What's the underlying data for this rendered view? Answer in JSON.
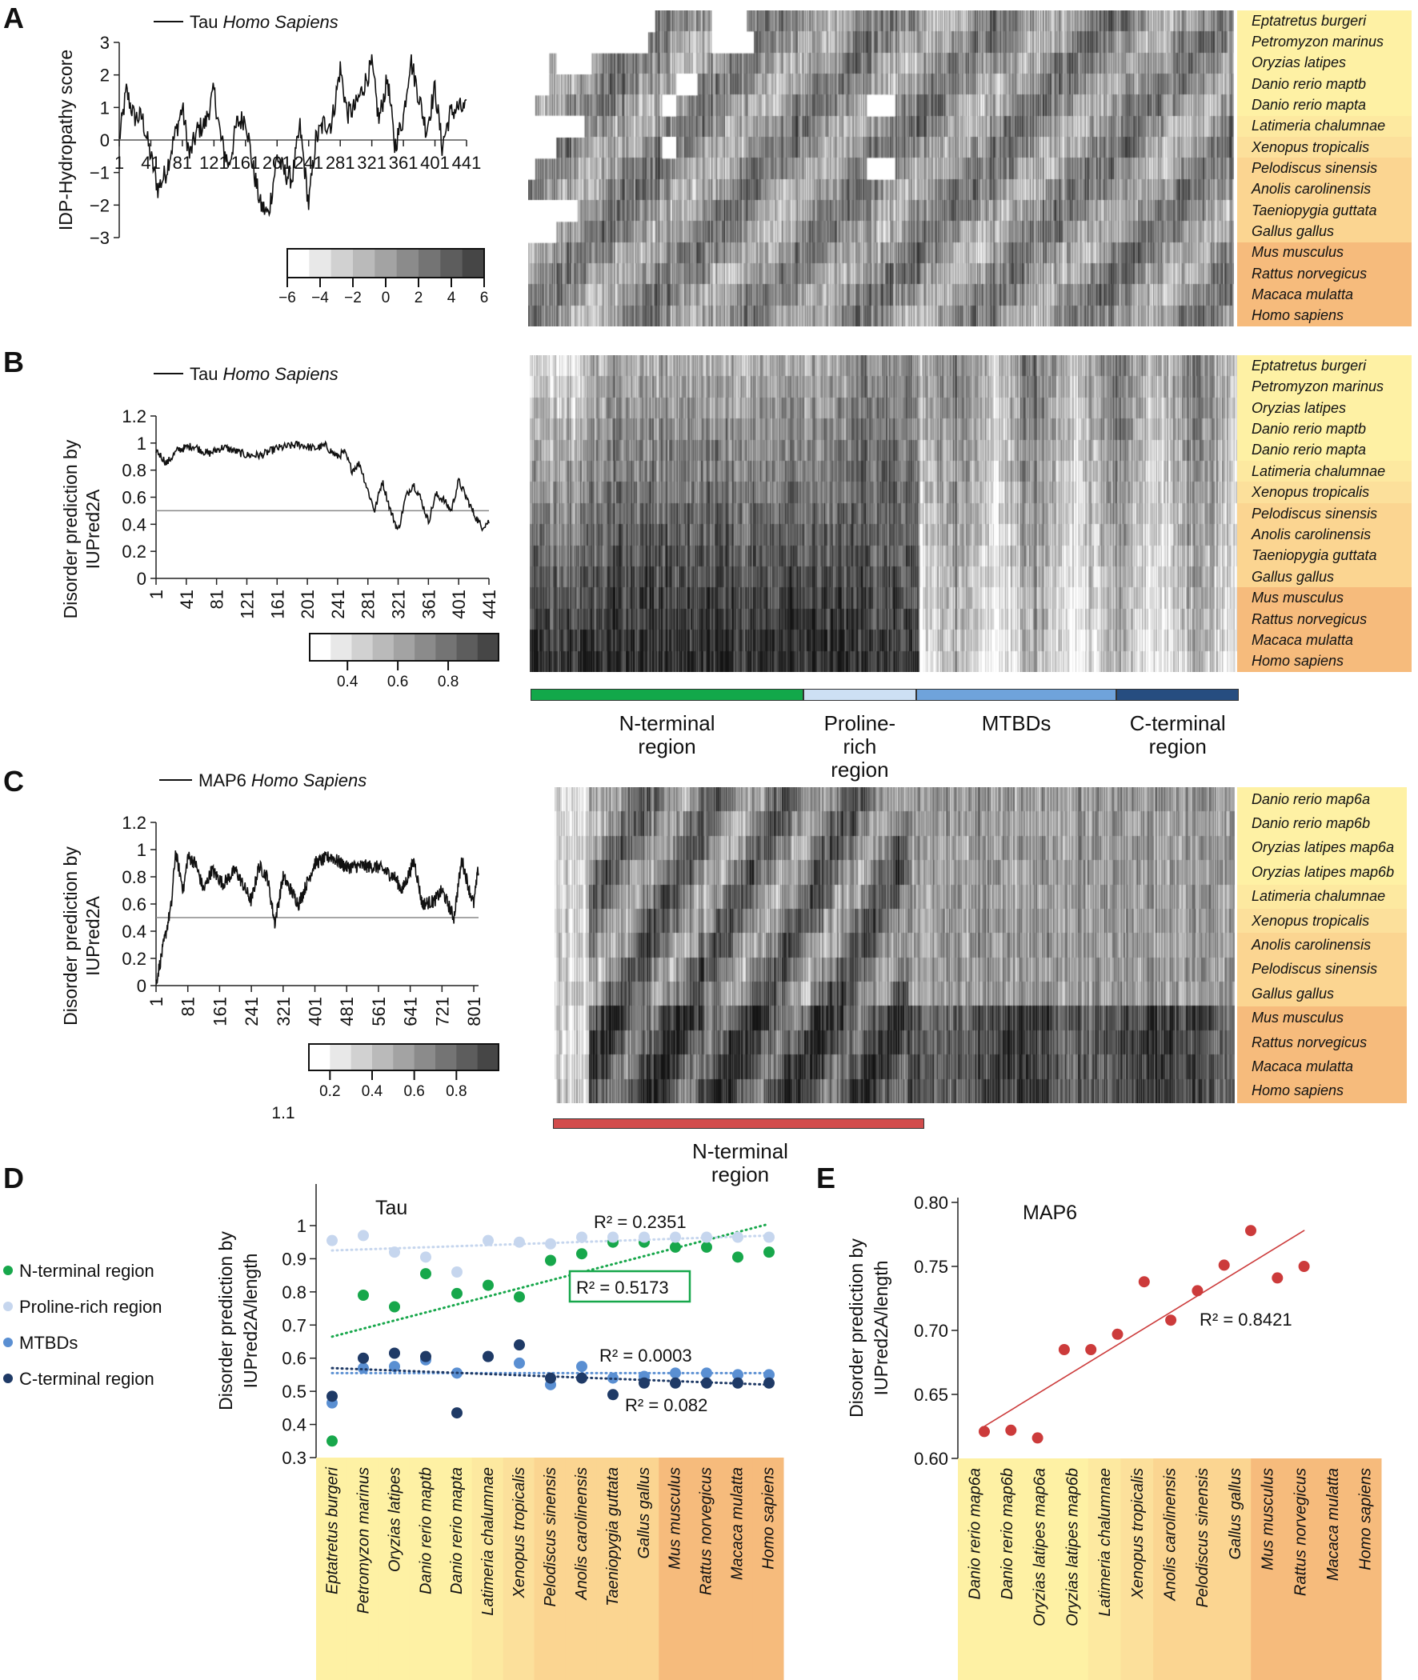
{
  "panel_labels": {
    "a": "A",
    "b": "B",
    "c": "C",
    "d": "D",
    "e": "E"
  },
  "tau_species": [
    "Eptatretus burgeri",
    "Petromyzon marinus",
    "Oryzias latipes",
    "Danio rerio maptb",
    "Danio rerio mapta",
    "Latimeria chalumnae",
    "Xenopus tropicalis",
    "Pelodiscus sinensis",
    "Anolis carolinensis",
    "Taeniopygia guttata",
    "Gallus gallus",
    "Mus musculus",
    "Rattus norvegicus",
    "Macaca mulatta",
    "Homo sapiens"
  ],
  "tau_species_colors": [
    "#fef1a4",
    "#fef1a4",
    "#fef1a4",
    "#fef1a4",
    "#fef1a4",
    "#fde9a0",
    "#fce09b",
    "#fbd591",
    "#fbd591",
    "#fbd591",
    "#fbd591",
    "#f6bb7c",
    "#f6bb7c",
    "#f6bb7c",
    "#f6bb7c"
  ],
  "map6_species": [
    "Danio rerio map6a",
    "Danio rerio map6b",
    "Oryzias latipes map6a",
    "Oryzias latipes map6b",
    "Latimeria chalumnae",
    "Xenopus tropicalis",
    "Anolis carolinensis",
    "Pelodiscus sinensis",
    "Gallus gallus",
    "Mus musculus",
    "Rattus norvegicus",
    "Macaca mulatta",
    "Homo sapiens"
  ],
  "map6_species_colors": [
    "#fef1a4",
    "#fef1a4",
    "#fef1a4",
    "#fef1a4",
    "#fde9a0",
    "#fce09b",
    "#fbd591",
    "#fbd591",
    "#fbd591",
    "#f6bb7c",
    "#f6bb7c",
    "#f6bb7c",
    "#f6bb7c"
  ],
  "tau_regions": [
    {
      "label1": "N-terminal",
      "label2": "region",
      "label3": "",
      "color": "#12a84a",
      "start": 1,
      "end": 170
    },
    {
      "label1": "Proline-",
      "label2": "rich",
      "label3": "region",
      "color": "#cde0f4",
      "start": 171,
      "end": 240
    },
    {
      "label1": "MTBDs",
      "label2": "",
      "label3": "",
      "color": "#6fa3db",
      "start": 241,
      "end": 365
    },
    {
      "label1": "C-terminal",
      "label2": "region",
      "label3": "",
      "color": "#264d80",
      "start": 366,
      "end": 441
    }
  ],
  "map6_region": {
    "label1": "N-terminal",
    "label2": "region",
    "color": "#d24c4c"
  },
  "chart_data": [
    {
      "id": "A",
      "type": "line",
      "legend_protein": "Tau",
      "legend_species": "Homo Sapiens",
      "ylabel": "IDP-Hydropathy score",
      "xlim": [
        1,
        441
      ],
      "ylim": [
        -3,
        3
      ],
      "yticks": [
        "3",
        "2",
        "1",
        "0",
        "−1",
        "−2",
        "−3"
      ],
      "xticks": [
        "1",
        "41",
        "81",
        "121",
        "161",
        "201",
        "241",
        "281",
        "321",
        "361",
        "401",
        "441"
      ],
      "reference_line": 0,
      "series_x": [
        1,
        10,
        20,
        30,
        41,
        50,
        60,
        70,
        81,
        90,
        100,
        110,
        121,
        130,
        140,
        150,
        161,
        170,
        180,
        190,
        201,
        210,
        220,
        230,
        241,
        250,
        260,
        270,
        281,
        290,
        300,
        321,
        330,
        341,
        350,
        361,
        370,
        380,
        390,
        401,
        410,
        420,
        430,
        441
      ],
      "series_y": [
        0,
        1.5,
        0.7,
        0.7,
        -0.5,
        -1.5,
        -1,
        0,
        1,
        -0.5,
        0.3,
        0.5,
        1.5,
        0,
        -0.8,
        0.5,
        0.7,
        -0.8,
        -2,
        -2.3,
        -0.5,
        -1,
        -1.2,
        0.4,
        -2,
        0,
        0.5,
        0.5,
        2.2,
        0.8,
        1,
        2.3,
        0.6,
        1.9,
        -0.2,
        0.7,
        2.5,
        1.4,
        0.3,
        1.6,
        -0.2,
        0.8,
        1.0,
        0.9
      ],
      "colorbar": {
        "ticks": [
          "−6",
          "−4",
          "−2",
          "0",
          "2",
          "4",
          "6"
        ],
        "range": [
          -6,
          6
        ]
      },
      "heatmap_rows": "tau_species"
    },
    {
      "id": "B",
      "type": "line",
      "legend_protein": "Tau",
      "legend_species": "Homo Sapiens",
      "ylabel_line1": "Disorder prediction by",
      "ylabel_line2": "IUPred2A",
      "xlim": [
        1,
        441
      ],
      "ylim": [
        0,
        1.2
      ],
      "yticks": [
        "1.2",
        "1",
        "0.8",
        "0.6",
        "0.4",
        "0.2",
        "0"
      ],
      "xticks": [
        "1",
        "41",
        "81",
        "121",
        "161",
        "201",
        "241",
        "281",
        "321",
        "361",
        "401",
        "441"
      ],
      "reference_line": 0.5,
      "series_x": [
        1,
        15,
        30,
        50,
        70,
        90,
        121,
        140,
        160,
        190,
        210,
        225,
        240,
        250,
        260,
        270,
        281,
        290,
        300,
        311,
        321,
        331,
        341,
        350,
        361,
        371,
        381,
        391,
        401,
        411,
        421,
        431,
        441
      ],
      "series_y": [
        0.95,
        0.85,
        0.95,
        0.98,
        0.92,
        0.97,
        0.91,
        0.91,
        0.96,
        0.99,
        0.96,
        0.98,
        0.9,
        0.93,
        0.8,
        0.85,
        0.65,
        0.5,
        0.72,
        0.5,
        0.35,
        0.6,
        0.7,
        0.6,
        0.42,
        0.62,
        0.58,
        0.5,
        0.72,
        0.6,
        0.48,
        0.38,
        0.42
      ],
      "colorbar": {
        "ticks": [
          "0.4",
          "0.6",
          "0.8"
        ],
        "range": [
          0.25,
          1.0
        ]
      },
      "heatmap_rows": "tau_species"
    },
    {
      "id": "C",
      "type": "line",
      "legend_protein": "MAP6",
      "legend_species": "Homo Sapiens",
      "ylabel_line1": "Disorder prediction by",
      "ylabel_line2": "IUPred2A",
      "xlim": [
        1,
        813
      ],
      "ylim": [
        0,
        1.2
      ],
      "yticks": [
        "1.2",
        "1",
        "0.8",
        "0.6",
        "0.4",
        "0.2",
        "0"
      ],
      "xticks": [
        "1",
        "81",
        "161",
        "241",
        "321",
        "401",
        "481",
        "561",
        "641",
        "721",
        "801"
      ],
      "reference_line": 0.5,
      "series_x": [
        1,
        20,
        40,
        50,
        70,
        81,
        100,
        121,
        141,
        170,
        201,
        241,
        260,
        281,
        300,
        321,
        341,
        360,
        401,
        441,
        481,
        521,
        561,
        601,
        621,
        651,
        671,
        701,
        721,
        751,
        771,
        790,
        801,
        812
      ],
      "series_y": [
        0.02,
        0.3,
        0.6,
        0.98,
        0.7,
        0.95,
        0.9,
        0.7,
        0.85,
        0.75,
        0.85,
        0.62,
        0.88,
        0.8,
        0.46,
        0.8,
        0.7,
        0.6,
        0.9,
        0.95,
        0.87,
        0.88,
        0.87,
        0.8,
        0.7,
        0.92,
        0.6,
        0.62,
        0.7,
        0.5,
        0.93,
        0.7,
        0.6,
        0.85
      ],
      "colorbar": {
        "ticks": [
          "0.2",
          "0.4",
          "0.6",
          "0.8"
        ],
        "range": [
          0.1,
          1.0
        ]
      },
      "colorbar_extra_label": "1.1",
      "heatmap_rows": "map6_species"
    },
    {
      "id": "D",
      "type": "scatter",
      "title": "Tau",
      "ylabel_line1": "Disorder prediction by",
      "ylabel_line2": "IUPred2A/length",
      "ylim": [
        0.3,
        1.05
      ],
      "yticks": [
        "1",
        "0.9",
        "0.8",
        "0.7",
        "0.6",
        "0.5",
        "0.4",
        "0.3"
      ],
      "categories_ref": "tau_species",
      "series": [
        {
          "name": "N-terminal region",
          "color": "#17a74b",
          "values": [
            0.35,
            0.79,
            0.755,
            0.855,
            0.795,
            0.82,
            0.785,
            0.895,
            0.915,
            0.95,
            0.95,
            0.935,
            0.935,
            0.905,
            0.92
          ],
          "trend": [
            0.665,
            1.005
          ],
          "r2": "R² = 0.5173",
          "boxed": true
        },
        {
          "name": "Proline-rich region",
          "color": "#c6d6ee",
          "values": [
            0.955,
            0.97,
            0.92,
            0.905,
            0.86,
            0.955,
            0.95,
            0.945,
            0.965,
            0.965,
            0.965,
            0.965,
            0.965,
            0.965,
            0.965
          ],
          "trend": [
            0.925,
            0.97
          ],
          "r2": "R² = 0.2351"
        },
        {
          "name": "MTBDs",
          "color": "#5a8fd2",
          "values": [
            0.465,
            0.57,
            0.575,
            0.595,
            0.555,
            0.605,
            0.585,
            0.52,
            0.575,
            0.54,
            0.545,
            0.555,
            0.555,
            0.55,
            0.55
          ],
          "trend": [
            0.555,
            0.555
          ],
          "r2": "R² = 0.0003"
        },
        {
          "name": "C-terminal region",
          "color": "#1f3a66",
          "values": [
            0.485,
            0.6,
            0.615,
            0.605,
            0.435,
            0.605,
            0.64,
            0.54,
            0.54,
            0.49,
            0.525,
            0.525,
            0.525,
            0.525,
            0.525
          ],
          "trend": [
            0.57,
            0.52
          ],
          "r2": "R² = 0.082"
        }
      ]
    },
    {
      "id": "E",
      "type": "scatter",
      "title": "MAP6",
      "ylabel_line1": "Disorder prediction by",
      "ylabel_line2": "IUPred2A/length",
      "ylim": [
        0.6,
        0.8
      ],
      "yticks": [
        "0.80",
        "0.75",
        "0.70",
        "0.65",
        "0.60"
      ],
      "categories_ref": "map6_species",
      "series": [
        {
          "name": "MAP6",
          "color": "#cc3b3b",
          "values": [
            0.621,
            0.622,
            0.616,
            0.685,
            0.685,
            0.697,
            0.738,
            0.708,
            0.731,
            0.751,
            0.778,
            0.741,
            0.75
          ],
          "trend": [
            0.625,
            0.778
          ],
          "r2": "R² = 0.8421"
        }
      ]
    }
  ]
}
